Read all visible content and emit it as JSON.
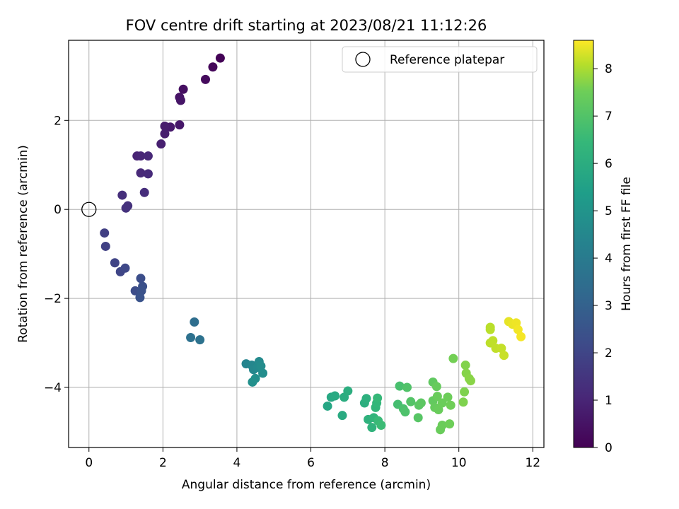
{
  "chart_data": {
    "type": "scatter",
    "title": "FOV centre drift starting at 2023/08/21 11:12:26",
    "xlabel": "Angular distance from reference (arcmin)",
    "ylabel": "Rotation from reference (arcmin)",
    "xlim": [
      -0.55,
      12.3
    ],
    "ylim": [
      -5.35,
      3.8
    ],
    "xticks": [
      "0",
      "2",
      "4",
      "6",
      "8",
      "10",
      "12"
    ],
    "xtick_values": [
      0,
      2,
      4,
      6,
      8,
      10,
      12
    ],
    "yticks": [
      "2",
      "0",
      "−2",
      "−4"
    ],
    "ytick_values": [
      2,
      0,
      -2,
      -4
    ],
    "grid": true,
    "legend": {
      "placement": "top-right",
      "entries": [
        "Reference platepar"
      ]
    },
    "reference_point": {
      "x": 0,
      "y": 0
    },
    "colorbar": {
      "label": "Hours from first FF file",
      "range": [
        0,
        8.6
      ],
      "ticks": [
        "0",
        "1",
        "2",
        "3",
        "4",
        "5",
        "6",
        "7",
        "8"
      ],
      "tick_values": [
        0,
        1,
        2,
        3,
        4,
        5,
        6,
        7,
        8
      ],
      "colormap": "viridis"
    },
    "points": [
      {
        "x": 3.55,
        "y": 3.4,
        "c": 0.05
      },
      {
        "x": 3.35,
        "y": 3.2,
        "c": 0.15
      },
      {
        "x": 3.15,
        "y": 2.92,
        "c": 0.25
      },
      {
        "x": 2.55,
        "y": 2.7,
        "c": 0.35
      },
      {
        "x": 2.45,
        "y": 2.52,
        "c": 0.45
      },
      {
        "x": 2.48,
        "y": 2.45,
        "c": 0.5
      },
      {
        "x": 2.45,
        "y": 1.9,
        "c": 0.55
      },
      {
        "x": 2.2,
        "y": 1.85,
        "c": 0.6
      },
      {
        "x": 2.05,
        "y": 1.87,
        "c": 0.65
      },
      {
        "x": 2.05,
        "y": 1.7,
        "c": 0.7
      },
      {
        "x": 1.95,
        "y": 1.47,
        "c": 0.75
      },
      {
        "x": 1.3,
        "y": 1.2,
        "c": 0.85
      },
      {
        "x": 1.4,
        "y": 1.2,
        "c": 0.9
      },
      {
        "x": 1.6,
        "y": 1.2,
        "c": 0.95
      },
      {
        "x": 1.4,
        "y": 0.82,
        "c": 1.0
      },
      {
        "x": 1.6,
        "y": 0.8,
        "c": 1.05
      },
      {
        "x": 1.5,
        "y": 0.38,
        "c": 1.1
      },
      {
        "x": 0.9,
        "y": 0.32,
        "c": 1.15
      },
      {
        "x": 1.05,
        "y": 0.08,
        "c": 1.2
      },
      {
        "x": 1.0,
        "y": 0.03,
        "c": 1.25
      },
      {
        "x": 0.42,
        "y": -0.53,
        "c": 1.6
      },
      {
        "x": 0.45,
        "y": -0.83,
        "c": 1.65
      },
      {
        "x": 0.7,
        "y": -1.2,
        "c": 1.75
      },
      {
        "x": 0.85,
        "y": -1.4,
        "c": 1.8
      },
      {
        "x": 0.98,
        "y": -1.32,
        "c": 1.85
      },
      {
        "x": 1.25,
        "y": -1.83,
        "c": 2.0
      },
      {
        "x": 1.4,
        "y": -1.55,
        "c": 2.05
      },
      {
        "x": 1.45,
        "y": -1.73,
        "c": 2.1
      },
      {
        "x": 1.42,
        "y": -1.83,
        "c": 2.15
      },
      {
        "x": 1.38,
        "y": -1.98,
        "c": 2.2
      },
      {
        "x": 2.85,
        "y": -2.53,
        "c": 3.1
      },
      {
        "x": 2.75,
        "y": -2.88,
        "c": 3.2
      },
      {
        "x": 3.0,
        "y": -2.93,
        "c": 3.25
      },
      {
        "x": 4.25,
        "y": -3.47,
        "c": 3.9
      },
      {
        "x": 4.4,
        "y": -3.5,
        "c": 3.95
      },
      {
        "x": 4.45,
        "y": -3.6,
        "c": 4.0
      },
      {
        "x": 4.55,
        "y": -3.55,
        "c": 4.05
      },
      {
        "x": 4.6,
        "y": -3.42,
        "c": 4.1
      },
      {
        "x": 4.65,
        "y": -3.52,
        "c": 4.15
      },
      {
        "x": 4.7,
        "y": -3.68,
        "c": 4.2
      },
      {
        "x": 4.5,
        "y": -3.8,
        "c": 4.25
      },
      {
        "x": 4.42,
        "y": -3.88,
        "c": 4.3
      },
      {
        "x": 6.45,
        "y": -4.42,
        "c": 5.1
      },
      {
        "x": 6.55,
        "y": -4.22,
        "c": 5.15
      },
      {
        "x": 6.65,
        "y": -4.19,
        "c": 5.2
      },
      {
        "x": 6.85,
        "y": -4.63,
        "c": 5.25
      },
      {
        "x": 6.9,
        "y": -4.22,
        "c": 5.3
      },
      {
        "x": 7.0,
        "y": -4.08,
        "c": 5.35
      },
      {
        "x": 7.45,
        "y": -4.35,
        "c": 5.4
      },
      {
        "x": 7.5,
        "y": -4.25,
        "c": 5.45
      },
      {
        "x": 7.55,
        "y": -4.72,
        "c": 5.5
      },
      {
        "x": 7.65,
        "y": -4.9,
        "c": 5.55
      },
      {
        "x": 7.7,
        "y": -4.68,
        "c": 5.6
      },
      {
        "x": 7.75,
        "y": -4.45,
        "c": 5.65
      },
      {
        "x": 7.78,
        "y": -4.35,
        "c": 5.7
      },
      {
        "x": 7.8,
        "y": -4.24,
        "c": 5.75
      },
      {
        "x": 7.82,
        "y": -4.75,
        "c": 5.8
      },
      {
        "x": 7.9,
        "y": -4.85,
        "c": 5.85
      },
      {
        "x": 8.35,
        "y": -4.38,
        "c": 6.0
      },
      {
        "x": 8.4,
        "y": -3.97,
        "c": 6.05
      },
      {
        "x": 8.5,
        "y": -4.48,
        "c": 6.1
      },
      {
        "x": 8.55,
        "y": -4.55,
        "c": 6.15
      },
      {
        "x": 8.6,
        "y": -4.0,
        "c": 6.2
      },
      {
        "x": 8.7,
        "y": -4.32,
        "c": 6.25
      },
      {
        "x": 8.9,
        "y": -4.68,
        "c": 6.3
      },
      {
        "x": 8.92,
        "y": -4.4,
        "c": 6.35
      },
      {
        "x": 8.98,
        "y": -4.35,
        "c": 6.4
      },
      {
        "x": 9.3,
        "y": -3.88,
        "c": 6.45
      },
      {
        "x": 9.3,
        "y": -4.3,
        "c": 6.5
      },
      {
        "x": 9.35,
        "y": -4.45,
        "c": 6.55
      },
      {
        "x": 9.4,
        "y": -3.98,
        "c": 6.55
      },
      {
        "x": 9.42,
        "y": -4.2,
        "c": 6.6
      },
      {
        "x": 9.45,
        "y": -4.5,
        "c": 6.6
      },
      {
        "x": 9.5,
        "y": -4.95,
        "c": 6.6
      },
      {
        "x": 9.55,
        "y": -4.85,
        "c": 6.62
      },
      {
        "x": 9.55,
        "y": -4.35,
        "c": 6.64
      },
      {
        "x": 9.7,
        "y": -4.22,
        "c": 6.66
      },
      {
        "x": 9.75,
        "y": -4.82,
        "c": 6.68
      },
      {
        "x": 9.78,
        "y": -4.4,
        "c": 6.7
      },
      {
        "x": 9.85,
        "y": -3.35,
        "c": 6.75
      },
      {
        "x": 10.12,
        "y": -4.33,
        "c": 6.9
      },
      {
        "x": 10.15,
        "y": -4.1,
        "c": 6.9
      },
      {
        "x": 10.18,
        "y": -3.5,
        "c": 6.95
      },
      {
        "x": 10.2,
        "y": -3.68,
        "c": 7.0
      },
      {
        "x": 10.28,
        "y": -3.8,
        "c": 7.05
      },
      {
        "x": 10.32,
        "y": -3.85,
        "c": 7.05
      },
      {
        "x": 10.85,
        "y": -2.65,
        "c": 7.7
      },
      {
        "x": 10.85,
        "y": -2.7,
        "c": 7.7
      },
      {
        "x": 10.85,
        "y": -3.0,
        "c": 7.75
      },
      {
        "x": 10.92,
        "y": -2.95,
        "c": 7.78
      },
      {
        "x": 11.0,
        "y": -3.12,
        "c": 7.8
      },
      {
        "x": 11.15,
        "y": -3.12,
        "c": 7.85
      },
      {
        "x": 11.22,
        "y": -3.28,
        "c": 7.9
      },
      {
        "x": 11.35,
        "y": -2.52,
        "c": 8.3
      },
      {
        "x": 11.45,
        "y": -2.58,
        "c": 8.35
      },
      {
        "x": 11.55,
        "y": -2.55,
        "c": 8.4
      },
      {
        "x": 11.6,
        "y": -2.7,
        "c": 8.45
      },
      {
        "x": 11.68,
        "y": -2.86,
        "c": 8.5
      }
    ]
  }
}
